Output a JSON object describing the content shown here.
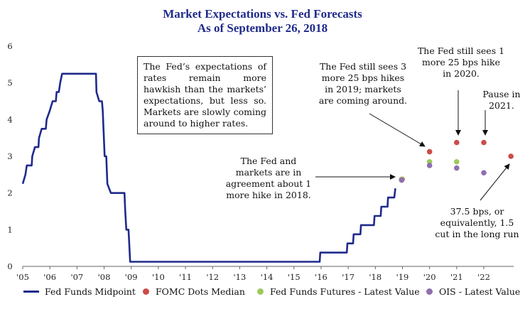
{
  "chart_data": {
    "type": "line",
    "title": "Market Expectations vs. Fed Forecasts",
    "subtitle": "As of September 26, 2018",
    "xlabel": "",
    "ylabel": "",
    "ylim": [
      0,
      6
    ],
    "xlim": [
      2005,
      2023.1
    ],
    "y_ticks": [
      "0",
      "1",
      "2",
      "3",
      "4",
      "5",
      "6"
    ],
    "x_ticks": [
      {
        "label": "'05",
        "x": 2005
      },
      {
        "label": "'06",
        "x": 2006
      },
      {
        "label": "'07",
        "x": 2007
      },
      {
        "label": "'08",
        "x": 2008
      },
      {
        "label": "'09",
        "x": 2009
      },
      {
        "label": "'10",
        "x": 2010
      },
      {
        "label": "'11",
        "x": 2011
      },
      {
        "label": "'12",
        "x": 2012
      },
      {
        "label": "'13",
        "x": 2013
      },
      {
        "label": "'14",
        "x": 2014
      },
      {
        "label": "'15",
        "x": 2015
      },
      {
        "label": "'16",
        "x": 2016
      },
      {
        "label": "'17",
        "x": 2017
      },
      {
        "label": "'18",
        "x": 2018
      },
      {
        "label": "'19",
        "x": 2019
      },
      {
        "label": "'20",
        "x": 2020
      },
      {
        "label": "'21",
        "x": 2021
      },
      {
        "label": "'22",
        "x": 2022
      }
    ],
    "grid": false,
    "legend_position": "bottom",
    "series": [
      {
        "name": "Fed Funds Midpoint",
        "style": "step-line",
        "color": "#1f2a8c",
        "points": [
          [
            2005.0,
            2.25
          ],
          [
            2005.1,
            2.5
          ],
          [
            2005.15,
            2.75
          ],
          [
            2005.33,
            2.75
          ],
          [
            2005.35,
            3.0
          ],
          [
            2005.45,
            3.25
          ],
          [
            2005.58,
            3.25
          ],
          [
            2005.6,
            3.5
          ],
          [
            2005.7,
            3.75
          ],
          [
            2005.85,
            3.75
          ],
          [
            2005.88,
            4.0
          ],
          [
            2006.0,
            4.25
          ],
          [
            2006.1,
            4.5
          ],
          [
            2006.22,
            4.5
          ],
          [
            2006.25,
            4.75
          ],
          [
            2006.33,
            4.75
          ],
          [
            2006.38,
            5.0
          ],
          [
            2006.45,
            5.25
          ],
          [
            2007.7,
            5.25
          ],
          [
            2007.72,
            4.75
          ],
          [
            2007.82,
            4.5
          ],
          [
            2007.92,
            4.5
          ],
          [
            2007.95,
            4.25
          ],
          [
            2008.02,
            3.0
          ],
          [
            2008.08,
            3.0
          ],
          [
            2008.12,
            2.25
          ],
          [
            2008.25,
            2.0
          ],
          [
            2008.75,
            2.0
          ],
          [
            2008.78,
            1.5
          ],
          [
            2008.82,
            1.0
          ],
          [
            2008.9,
            1.0
          ],
          [
            2008.96,
            0.125
          ],
          [
            2015.95,
            0.125
          ],
          [
            2015.97,
            0.375
          ],
          [
            2016.95,
            0.375
          ],
          [
            2016.97,
            0.625
          ],
          [
            2017.18,
            0.625
          ],
          [
            2017.2,
            0.875
          ],
          [
            2017.45,
            0.875
          ],
          [
            2017.47,
            1.125
          ],
          [
            2017.95,
            1.125
          ],
          [
            2017.97,
            1.375
          ],
          [
            2018.2,
            1.375
          ],
          [
            2018.22,
            1.625
          ],
          [
            2018.45,
            1.625
          ],
          [
            2018.47,
            1.875
          ],
          [
            2018.7,
            1.875
          ],
          [
            2018.74,
            2.125
          ]
        ]
      },
      {
        "name": "FOMC Dots Median",
        "style": "dots",
        "color": "#cc4c48",
        "points": [
          [
            2018.99,
            2.375
          ],
          [
            2020.0,
            3.125
          ],
          [
            2021.0,
            3.375
          ],
          [
            2022.0,
            3.375
          ],
          [
            2023.0,
            3.0
          ]
        ]
      },
      {
        "name": "Fed Funds Futures - Latest Value",
        "style": "dots",
        "color": "#9dc95a",
        "points": [
          [
            2018.97,
            2.375
          ],
          [
            2020.0,
            2.85
          ],
          [
            2021.0,
            2.85
          ]
        ]
      },
      {
        "name": "OIS - Latest Value",
        "style": "dots",
        "color": "#8f6fb0",
        "points": [
          [
            2018.97,
            2.35
          ],
          [
            2020.0,
            2.75
          ],
          [
            2021.0,
            2.68
          ],
          [
            2022.0,
            2.55
          ]
        ]
      }
    ],
    "annotations": {
      "box": "The Fed’s expectations of rates remain more hawkish than the markets’ expectations, but less so. Markets are slowly coming around to higher rates.",
      "agreement": "The Fed and\nmarkets are in\nagreement about 1\nmore hike in 2018.",
      "hikes_2019": "The Fed still sees 3\nmore 25 bps hikes\nin 2019; markets\nare coming around.",
      "hike_2020": "The Fed still sees 1\nmore 25 bps hike\nin 2020.",
      "pause_2021": "Pause in\n2021.",
      "long_run": "37.5 bps, or\nequivalently, 1.5\ncut in the long run"
    }
  }
}
